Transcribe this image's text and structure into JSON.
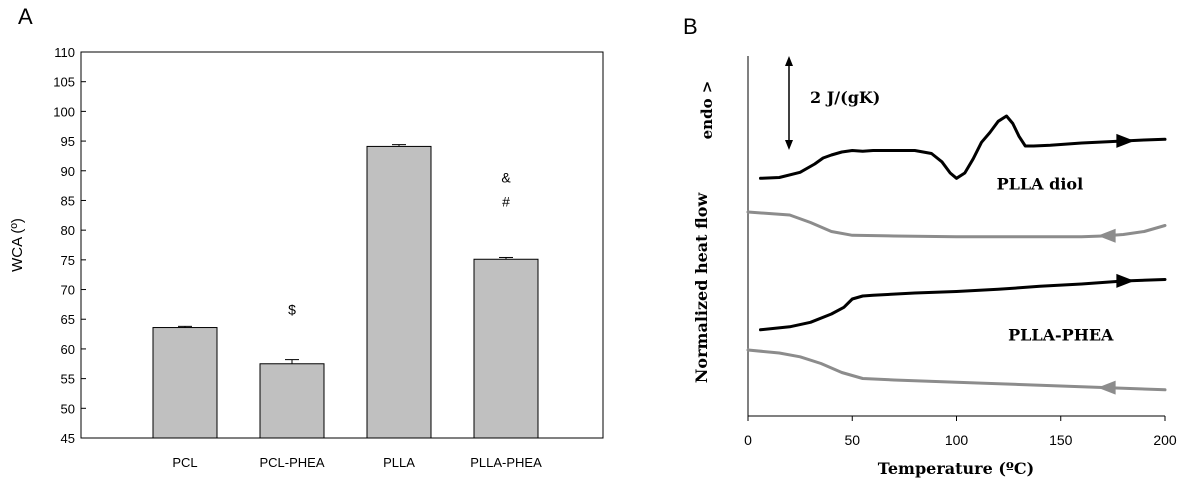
{
  "panels": {
    "a_label": "A",
    "b_label": "B"
  },
  "chart_data": [
    {
      "type": "bar",
      "panel": "A",
      "title": "",
      "xlabel": "",
      "ylabel": "WCA (º)",
      "ylim": [
        45,
        110
      ],
      "yticks": [
        45,
        50,
        55,
        60,
        65,
        70,
        75,
        80,
        85,
        90,
        95,
        100,
        105,
        110
      ],
      "categories": [
        "PCL",
        "PCL-PHEA",
        "PLLA",
        "PLLA-PHEA"
      ],
      "values": [
        63.6,
        57.5,
        94.1,
        75.1
      ],
      "errors": [
        0.2,
        0.7,
        0.3,
        0.3
      ],
      "annotations": [
        {
          "category": "PCL-PHEA",
          "text": "$",
          "y": 65.8
        },
        {
          "category": "PLLA-PHEA",
          "text": "&",
          "y": 88.0
        },
        {
          "category": "PLLA-PHEA",
          "text": "#",
          "y": 84.0
        }
      ],
      "bar_color": "#c0c0c0",
      "edge_color": "#000000",
      "grid": false
    },
    {
      "type": "line",
      "panel": "B",
      "title": "",
      "xlabel": "Temperature (ºC)",
      "ylabel": "Normalized heat flow",
      "endo_label": "endo >",
      "scale_label": "2 J/(gK)",
      "xlim": [
        0,
        200
      ],
      "xticks": [
        0,
        50,
        100,
        150,
        200
      ],
      "grid": false,
      "series": [
        {
          "name": "",
          "color": "#000000",
          "direction": "heating",
          "group": "PLLA diol",
          "x": [
            6,
            15,
            25,
            32,
            36,
            40,
            45,
            50,
            55,
            60,
            70,
            80,
            88,
            93,
            97,
            100,
            104,
            108,
            112,
            116,
            120,
            124,
            127,
            130,
            133,
            137,
            145,
            160,
            175,
            190,
            200
          ],
          "y": [
            0.77,
            0.78,
            0.85,
            0.96,
            1.04,
            1.08,
            1.12,
            1.14,
            1.13,
            1.14,
            1.14,
            1.14,
            1.1,
            0.99,
            0.84,
            0.77,
            0.84,
            1.03,
            1.25,
            1.38,
            1.53,
            1.6,
            1.5,
            1.33,
            1.2,
            1.2,
            1.21,
            1.24,
            1.26,
            1.28,
            1.29
          ]
        },
        {
          "name": "",
          "color": "#8c8c8c",
          "direction": "cooling",
          "group": "PLLA diol",
          "x": [
            0,
            20,
            30,
            40,
            50,
            70,
            100,
            130,
            160,
            170,
            180,
            190,
            200
          ],
          "y": [
            0.32,
            0.28,
            0.18,
            0.06,
            0.01,
            0.0,
            -0.01,
            -0.01,
            -0.01,
            0.0,
            0.02,
            0.06,
            0.14
          ]
        },
        {
          "name": "",
          "color": "#000000",
          "direction": "heating",
          "group": "PLLA-PHEA",
          "x": [
            6,
            20,
            30,
            40,
            46,
            50,
            55,
            60,
            80,
            100,
            120,
            140,
            160,
            180,
            200
          ],
          "y": [
            -1.25,
            -1.21,
            -1.15,
            -1.04,
            -0.95,
            -0.84,
            -0.8,
            -0.79,
            -0.76,
            -0.74,
            -0.71,
            -0.67,
            -0.64,
            -0.6,
            -0.58
          ]
        },
        {
          "name": "",
          "color": "#8c8c8c",
          "direction": "cooling",
          "group": "PLLA-PHEA",
          "x": [
            0,
            15,
            25,
            35,
            45,
            55,
            70,
            100,
            130,
            160,
            200
          ],
          "y": [
            -1.52,
            -1.56,
            -1.61,
            -1.7,
            -1.82,
            -1.9,
            -1.92,
            -1.95,
            -1.98,
            -2.01,
            -2.05
          ]
        }
      ],
      "curve_labels": [
        {
          "text": "PLLA diol",
          "x": 140,
          "y": 0.62
        },
        {
          "text": "PLLA-PHEA",
          "x": 150,
          "y": -1.39
        }
      ],
      "ylim": [
        -2.4,
        2.4
      ]
    }
  ]
}
